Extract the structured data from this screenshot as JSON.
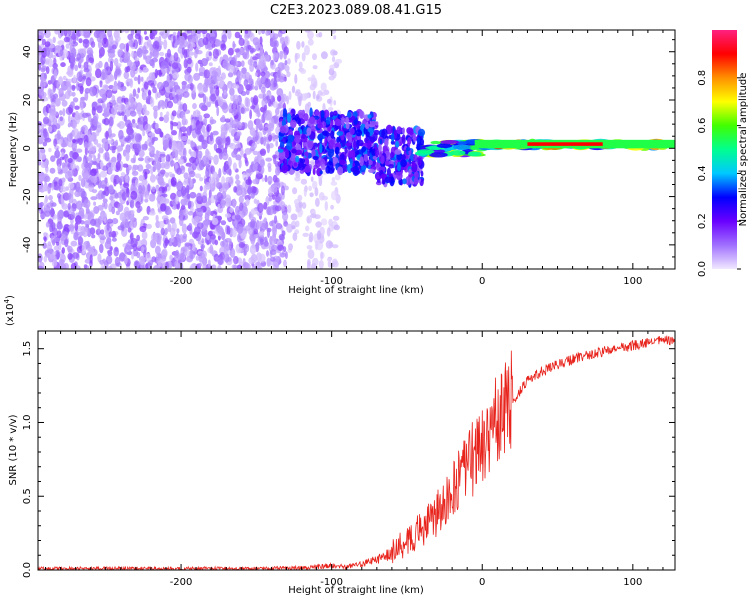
{
  "title": "C2E3.2023.089.08.41.G15",
  "chart_data": [
    {
      "type": "heatmap",
      "xlabel": "Height of straight line (km)",
      "ylabel": "Frequency (Hz)",
      "xlim": [
        -295,
        128
      ],
      "ylim": [
        -50,
        49
      ],
      "x_ticks": [
        -200,
        -100,
        0,
        100
      ],
      "y_ticks": [
        -40,
        -20,
        0,
        20,
        40
      ],
      "colorbar": {
        "label": "Normalized spectral amplitude",
        "range": [
          0.0,
          1.0
        ],
        "ticks": [
          "0.0",
          "0.2",
          "0.4",
          "0.6",
          "0.8"
        ],
        "colormap": [
          "#f0e8ff",
          "#a070ff",
          "#6a00ff",
          "#0000ff",
          "#00c8ff",
          "#00ff90",
          "#40ff00",
          "#ffff00",
          "#ff9000",
          "#ff0000",
          "#ff2080"
        ]
      },
      "spectrum_bands": [
        {
          "x_range": [
            -295,
            -130
          ],
          "f_range": [
            -50,
            49
          ],
          "amplitude": 0.12
        },
        {
          "x_range": [
            -130,
            -95
          ],
          "f_range": [
            -50,
            49
          ],
          "amplitude": 0.04
        },
        {
          "x_range": [
            -135,
            -70
          ],
          "f_range": [
            -10,
            15
          ],
          "amplitude": 0.3
        },
        {
          "x_range": [
            -70,
            -40
          ],
          "f_range": [
            -15,
            8
          ],
          "amplitude": 0.3
        },
        {
          "x_range": [
            -40,
            0
          ],
          "f_range": [
            -3,
            3
          ],
          "amplitude": 0.55
        },
        {
          "x_range": [
            0,
            128
          ],
          "f_range": [
            0,
            3
          ],
          "amplitude": 0.75
        }
      ]
    },
    {
      "type": "line",
      "xlabel": "Height of straight line (km)",
      "ylabel": "SNR (10 * v/v)",
      "y_multiplier_label": "(x10",
      "y_multiplier_exponent": "4",
      "xlim": [
        -295,
        128
      ],
      "ylim": [
        0,
        1.62
      ],
      "x_ticks": [
        -200,
        -100,
        0,
        100
      ],
      "y_ticks": [
        0.0,
        0.5,
        1.0,
        1.5
      ],
      "y_tick_labels": [
        "0.0",
        "0.5",
        "1.0",
        "1.5"
      ],
      "series": [
        {
          "color": "#e8231c",
          "x": [
            -295,
            -250,
            -200,
            -150,
            -120,
            -100,
            -90,
            -80,
            -70,
            -60,
            -50,
            -40,
            -30,
            -20,
            -10,
            0,
            10,
            20,
            30,
            40,
            60,
            80,
            100,
            120,
            128
          ],
          "y": [
            0.01,
            0.01,
            0.01,
            0.01,
            0.015,
            0.03,
            0.02,
            0.04,
            0.07,
            0.12,
            0.2,
            0.28,
            0.38,
            0.52,
            0.7,
            0.85,
            1.0,
            1.15,
            1.28,
            1.35,
            1.43,
            1.48,
            1.52,
            1.56,
            1.55
          ]
        }
      ]
    }
  ]
}
